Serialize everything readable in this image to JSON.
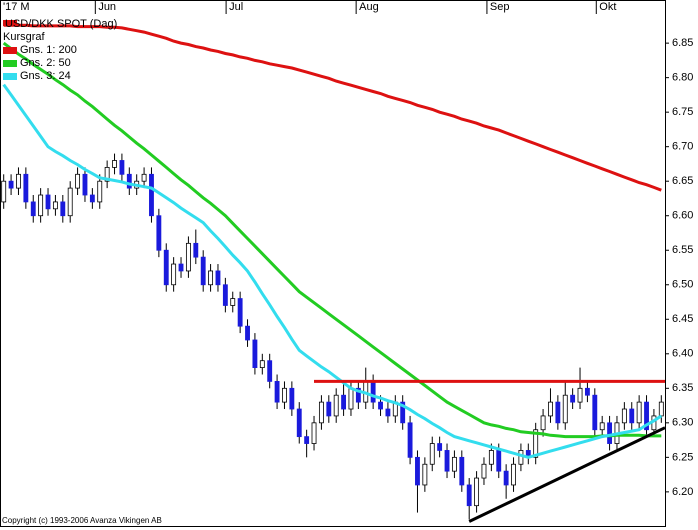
{
  "chart_data": {
    "type": "candlestick",
    "title": "USD/DKK SPOT (Dag)",
    "copyright": "Copyright (c) 1993-2006 Avanza Vikingen AB",
    "categories": [
      null,
      null,
      null,
      null,
      null,
      null,
      null,
      null,
      null,
      null,
      null,
      null,
      null,
      null,
      null,
      null,
      null,
      null,
      null,
      null,
      null,
      null,
      null,
      null,
      null,
      null,
      null,
      null,
      null,
      null,
      null,
      null,
      null,
      null,
      null,
      null,
      null,
      null,
      null,
      null,
      null,
      null,
      null,
      null,
      null,
      null,
      null,
      null,
      null,
      null,
      null,
      null,
      null,
      null,
      null,
      null,
      null,
      null,
      null,
      null,
      null,
      null,
      null,
      null,
      null,
      null,
      null,
      null,
      null,
      null,
      null,
      null,
      null,
      null,
      null,
      null,
      null,
      null,
      null,
      null,
      null,
      null,
      null,
      null,
      null,
      null,
      null,
      null,
      null,
      null
    ],
    "ohlc": {
      "name": "Kursgraf",
      "up_color": "#ffffff",
      "down_color": "#1a1adc",
      "open": [
        6.62,
        6.65,
        6.64,
        6.66,
        6.62,
        6.6,
        6.63,
        6.61,
        6.62,
        6.6,
        6.64,
        6.66,
        6.63,
        6.62,
        6.65,
        6.67,
        6.68,
        6.66,
        6.64,
        6.65,
        6.66,
        6.6,
        6.55,
        6.5,
        6.53,
        6.52,
        6.56,
        6.54,
        6.5,
        6.52,
        6.5,
        6.47,
        6.48,
        6.44,
        6.42,
        6.38,
        6.39,
        6.36,
        6.33,
        6.35,
        6.32,
        6.28,
        6.27,
        6.3,
        6.33,
        6.31,
        6.34,
        6.32,
        6.35,
        6.33,
        6.36,
        6.33,
        6.32,
        6.31,
        6.33,
        6.3,
        6.25,
        6.21,
        6.24,
        6.27,
        6.26,
        6.23,
        6.25,
        6.21,
        6.18,
        6.22,
        6.24,
        6.26,
        6.23,
        6.21,
        6.24,
        6.26,
        6.25,
        6.29,
        6.31,
        6.33,
        6.3,
        6.34,
        6.33,
        6.35,
        6.34,
        6.29,
        6.3,
        6.27,
        6.3,
        6.32,
        6.3,
        6.33,
        6.29,
        6.31
      ],
      "high": [
        6.66,
        6.66,
        6.67,
        6.67,
        6.63,
        6.64,
        6.64,
        6.63,
        6.63,
        6.65,
        6.67,
        6.67,
        6.64,
        6.66,
        6.68,
        6.69,
        6.69,
        6.67,
        6.66,
        6.67,
        6.67,
        6.61,
        6.56,
        6.54,
        6.54,
        6.57,
        6.58,
        6.55,
        6.53,
        6.53,
        6.51,
        6.49,
        6.49,
        6.45,
        6.43,
        6.4,
        6.4,
        6.37,
        6.36,
        6.36,
        6.33,
        6.29,
        6.31,
        6.34,
        6.34,
        6.35,
        6.36,
        6.36,
        6.36,
        6.38,
        6.37,
        6.34,
        6.33,
        6.34,
        6.34,
        6.31,
        6.26,
        6.25,
        6.28,
        6.28,
        6.27,
        6.26,
        6.26,
        6.22,
        6.23,
        6.25,
        6.27,
        6.27,
        6.24,
        6.25,
        6.27,
        6.27,
        6.3,
        6.32,
        6.35,
        6.34,
        6.36,
        6.35,
        6.38,
        6.36,
        6.35,
        6.31,
        6.31,
        6.31,
        6.33,
        6.33,
        6.34,
        6.34,
        6.32,
        6.34
      ],
      "low": [
        6.61,
        6.63,
        6.63,
        6.61,
        6.59,
        6.59,
        6.6,
        6.6,
        6.59,
        6.59,
        6.63,
        6.62,
        6.61,
        6.61,
        6.64,
        6.66,
        6.65,
        6.63,
        6.63,
        6.64,
        6.59,
        6.54,
        6.49,
        6.49,
        6.51,
        6.51,
        6.53,
        6.49,
        6.49,
        6.49,
        6.46,
        6.46,
        6.43,
        6.41,
        6.37,
        6.37,
        6.35,
        6.32,
        6.32,
        6.31,
        6.27,
        6.25,
        6.26,
        6.29,
        6.3,
        6.3,
        6.31,
        6.31,
        6.32,
        6.32,
        6.32,
        6.31,
        6.3,
        6.3,
        6.29,
        6.24,
        6.17,
        6.2,
        6.23,
        6.25,
        6.22,
        6.22,
        6.2,
        6.16,
        6.17,
        6.21,
        6.23,
        6.22,
        6.19,
        6.2,
        6.23,
        6.24,
        6.24,
        6.28,
        6.3,
        6.29,
        6.29,
        6.32,
        6.32,
        6.33,
        6.28,
        6.28,
        6.26,
        6.26,
        6.29,
        6.29,
        6.29,
        6.28,
        6.28,
        6.3
      ],
      "close": [
        6.65,
        6.64,
        6.66,
        6.62,
        6.6,
        6.63,
        6.61,
        6.62,
        6.6,
        6.64,
        6.66,
        6.63,
        6.62,
        6.65,
        6.67,
        6.68,
        6.66,
        6.64,
        6.65,
        6.66,
        6.6,
        6.55,
        6.5,
        6.53,
        6.52,
        6.56,
        6.54,
        6.5,
        6.52,
        6.5,
        6.47,
        6.48,
        6.44,
        6.42,
        6.38,
        6.39,
        6.36,
        6.33,
        6.35,
        6.32,
        6.28,
        6.27,
        6.3,
        6.33,
        6.31,
        6.34,
        6.32,
        6.35,
        6.33,
        6.36,
        6.33,
        6.32,
        6.31,
        6.33,
        6.3,
        6.25,
        6.21,
        6.24,
        6.27,
        6.26,
        6.23,
        6.25,
        6.21,
        6.18,
        6.22,
        6.24,
        6.26,
        6.23,
        6.21,
        6.24,
        6.26,
        6.25,
        6.29,
        6.31,
        6.33,
        6.3,
        6.34,
        6.33,
        6.35,
        6.34,
        6.29,
        6.3,
        6.27,
        6.3,
        6.32,
        6.3,
        6.33,
        6.29,
        6.31,
        6.33
      ]
    },
    "series": [
      {
        "name": "Gns. 1: 200",
        "color": "#dd1111",
        "values": [
          6.876,
          6.876,
          6.876,
          6.876,
          6.875,
          6.875,
          6.875,
          6.875,
          6.875,
          6.875,
          6.874,
          6.874,
          6.874,
          6.874,
          6.873,
          6.873,
          6.872,
          6.87,
          6.868,
          6.866,
          6.863,
          6.86,
          6.857,
          6.853,
          6.85,
          6.848,
          6.845,
          6.843,
          6.84,
          6.838,
          6.835,
          6.833,
          6.83,
          6.828,
          6.825,
          6.823,
          6.82,
          6.818,
          6.816,
          6.814,
          6.811,
          6.808,
          6.805,
          6.802,
          6.799,
          6.795,
          6.792,
          6.789,
          6.786,
          6.783,
          6.78,
          6.777,
          6.773,
          6.77,
          6.767,
          6.764,
          6.76,
          6.757,
          6.754,
          6.75,
          6.747,
          6.744,
          6.74,
          6.737,
          6.734,
          6.73,
          6.727,
          6.724,
          6.72,
          6.716,
          6.712,
          6.708,
          6.704,
          6.7,
          6.696,
          6.692,
          6.688,
          6.684,
          6.68,
          6.676,
          6.672,
          6.668,
          6.664,
          6.66,
          6.656,
          6.652,
          6.648,
          6.645,
          6.641,
          6.637
        ]
      },
      {
        "name": "Gns. 2: 50",
        "color": "#22cc22",
        "values": [
          6.85,
          6.842,
          6.834,
          6.827,
          6.819,
          6.812,
          6.805,
          6.797,
          6.79,
          6.782,
          6.775,
          6.766,
          6.758,
          6.749,
          6.74,
          6.731,
          6.723,
          6.714,
          6.705,
          6.697,
          6.688,
          6.679,
          6.67,
          6.661,
          6.652,
          6.644,
          6.635,
          6.626,
          6.618,
          6.609,
          6.6,
          6.589,
          6.578,
          6.567,
          6.556,
          6.545,
          6.534,
          6.523,
          6.512,
          6.501,
          6.49,
          6.482,
          6.474,
          6.466,
          6.458,
          6.45,
          6.442,
          6.434,
          6.426,
          6.418,
          6.41,
          6.402,
          6.394,
          6.386,
          6.378,
          6.37,
          6.362,
          6.354,
          6.346,
          6.338,
          6.33,
          6.324,
          6.318,
          6.312,
          6.306,
          6.3,
          6.297,
          6.295,
          6.292,
          6.29,
          6.287,
          6.286,
          6.285,
          6.284,
          6.282,
          6.281,
          6.28,
          6.28,
          6.28,
          6.28,
          6.28,
          6.281,
          6.281,
          6.282,
          6.282,
          6.282,
          6.282,
          6.281,
          6.281,
          6.281
        ]
      },
      {
        "name": "Gns. 3: 24",
        "color": "#33ddee",
        "values": [
          6.79,
          6.775,
          6.76,
          6.745,
          6.73,
          6.715,
          6.7,
          6.693,
          6.687,
          6.68,
          6.674,
          6.667,
          6.661,
          6.655,
          6.653,
          6.651,
          6.649,
          6.646,
          6.644,
          6.642,
          6.64,
          6.633,
          6.626,
          6.619,
          6.611,
          6.604,
          6.597,
          6.59,
          6.578,
          6.567,
          6.555,
          6.543,
          6.532,
          6.52,
          6.504,
          6.487,
          6.471,
          6.454,
          6.438,
          6.421,
          6.405,
          6.397,
          6.389,
          6.381,
          6.374,
          6.366,
          6.358,
          6.35,
          6.346,
          6.343,
          6.339,
          6.336,
          6.332,
          6.329,
          6.325,
          6.319,
          6.312,
          6.306,
          6.299,
          6.293,
          6.286,
          6.28,
          6.277,
          6.274,
          6.271,
          6.268,
          6.265,
          6.262,
          6.259,
          6.256,
          6.253,
          6.25,
          6.253,
          6.256,
          6.259,
          6.262,
          6.265,
          6.268,
          6.271,
          6.274,
          6.277,
          6.28,
          6.282,
          6.284,
          6.286,
          6.288,
          6.29,
          6.297,
          6.303,
          6.31
        ]
      }
    ],
    "lines": [
      {
        "color": "#dd1111",
        "x": [
          42,
          89.5
        ],
        "values": [
          6.36,
          6.36
        ]
      },
      {
        "color": "#000000",
        "x": [
          63,
          89.5
        ],
        "values": [
          6.157,
          6.293
        ]
      }
    ],
    "xlim": [
      -0.5,
      89.5
    ],
    "xticks": [
      {
        "value": -0.5,
        "label": "'17 M"
      },
      {
        "value": 12.4,
        "label": "Jun"
      },
      {
        "value": 30.1,
        "label": "Jul"
      },
      {
        "value": 47.7,
        "label": "Aug"
      },
      {
        "value": 65.4,
        "label": "Sep"
      },
      {
        "value": 80.2,
        "label": "Okt"
      }
    ],
    "ylim": [
      6.152,
      6.898
    ],
    "yticks": [
      {
        "value": 6.2,
        "label": "6.20"
      },
      6.25,
      {
        "value": 6.3,
        "label": "6.30"
      },
      6.35,
      {
        "value": 6.4,
        "label": "6.40"
      },
      6.45,
      {
        "value": 6.5,
        "label": "6.50"
      },
      6.55,
      {
        "value": 6.6,
        "label": "6.60"
      },
      6.65,
      {
        "value": 6.7,
        "label": "6.70"
      },
      6.75,
      {
        "value": 6.8,
        "label": "6.80"
      },
      6.85
    ]
  }
}
